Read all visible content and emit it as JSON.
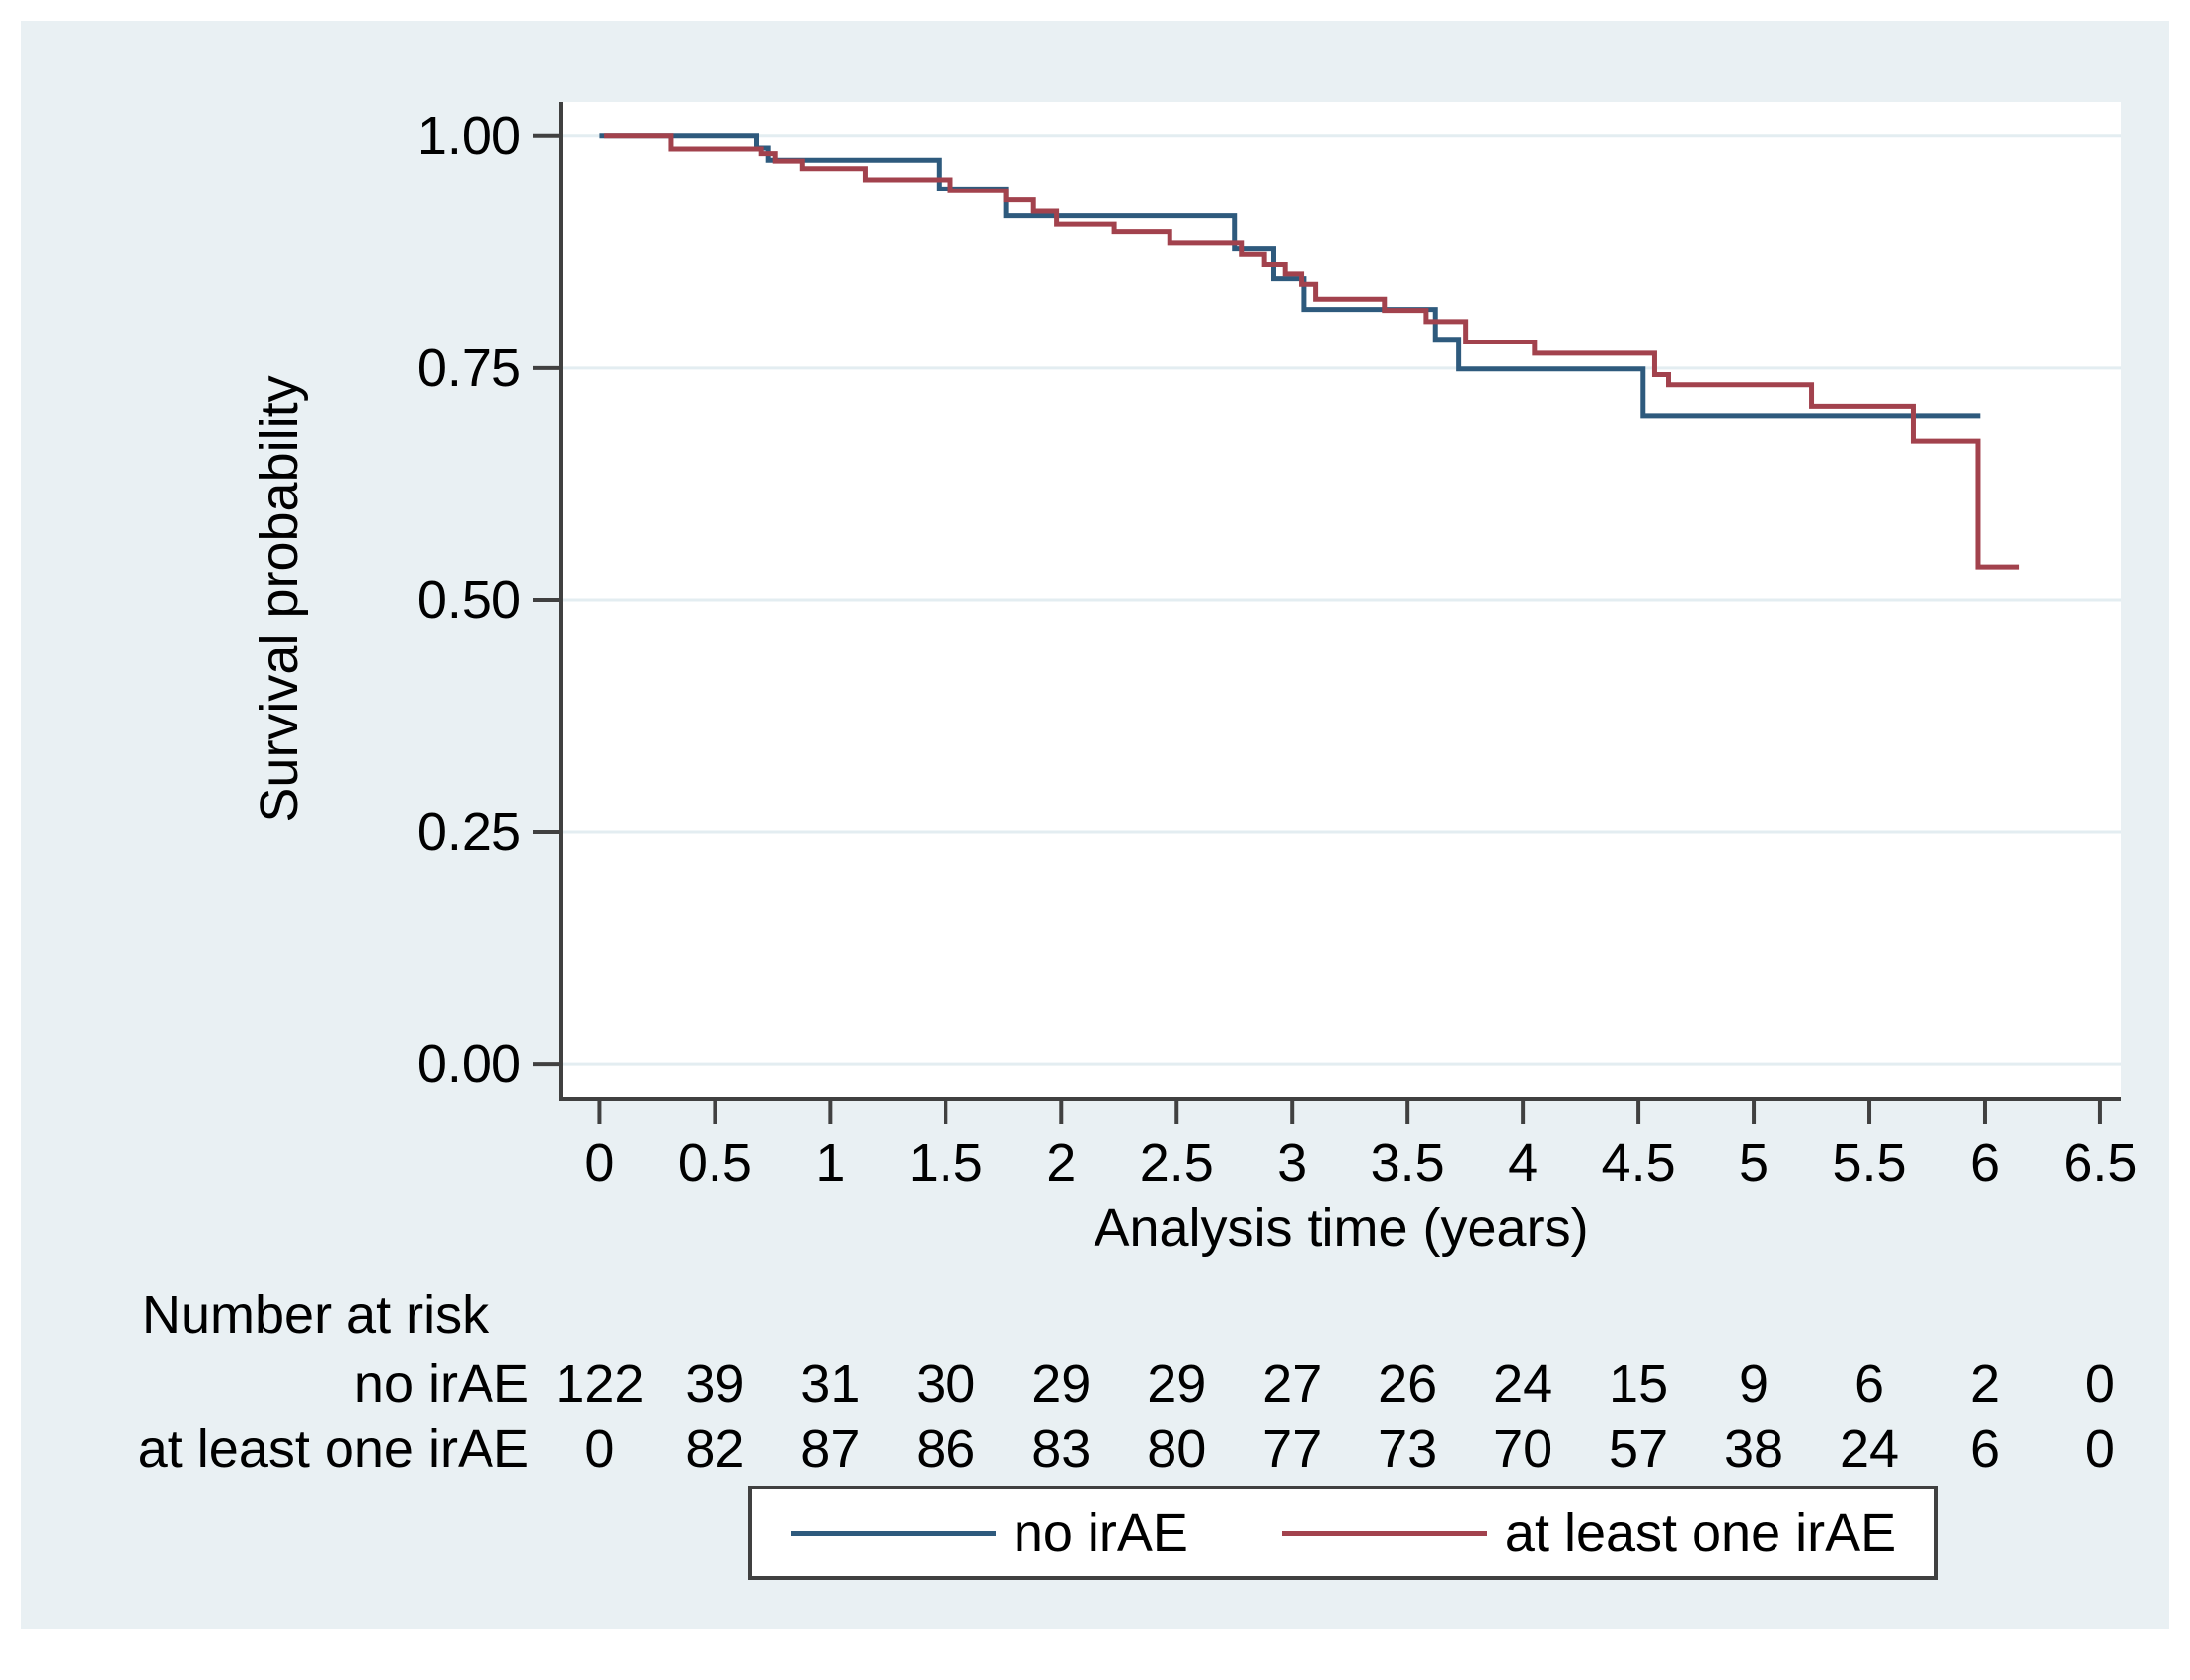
{
  "colors": {
    "figure_bg": "#e9f0f3",
    "plot_bg": "#ffffff",
    "grid": "#e3edf1",
    "axis": "#404040",
    "text": "#000000",
    "no_irae_line": "#2e5a7d",
    "at_least_one_irae_line": "#a2424d"
  },
  "legend": {
    "items": [
      {
        "label": "no irAE",
        "color": "#2e5a7d"
      },
      {
        "label": "at least one irAE",
        "color": "#a2424d"
      }
    ]
  },
  "chart_data": {
    "type": "line",
    "subtype": "kaplan-meier-step",
    "title": "",
    "xlabel": "Analysis time (years)",
    "ylabel": "Survival probability",
    "xlim": [
      -0.16,
      6.59
    ],
    "ylim": [
      -0.035,
      1.037
    ],
    "grid": true,
    "legend_position": "bottom",
    "x_ticks": [
      0,
      0.5,
      1,
      1.5,
      2,
      2.5,
      3,
      3.5,
      4,
      4.5,
      5,
      5.5,
      6,
      6.5
    ],
    "x_tick_labels": [
      "0",
      "0.5",
      "1",
      "1.5",
      "2",
      "2.5",
      "3",
      "3.5",
      "4",
      "4.5",
      "5",
      "5.5",
      "6",
      "6.5"
    ],
    "y_ticks": [
      0,
      0.25,
      0.5,
      0.75,
      1
    ],
    "y_tick_labels": [
      "0.00",
      "0.25",
      "0.50",
      "0.75",
      "1.00"
    ],
    "series": [
      {
        "name": "no irAE",
        "color": "#2e5a7d",
        "points": [
          [
            0,
            1.0
          ],
          [
            0.68,
            0.987
          ],
          [
            0.73,
            0.974
          ],
          [
            1.47,
            0.943
          ],
          [
            1.76,
            0.914
          ],
          [
            2.75,
            0.879
          ],
          [
            2.92,
            0.846
          ],
          [
            3.05,
            0.813
          ],
          [
            3.62,
            0.781
          ],
          [
            3.72,
            0.749
          ],
          [
            4.52,
            0.699
          ],
          [
            5.98,
            0.699
          ]
        ]
      },
      {
        "name": "at least one irAE",
        "color": "#a2424d",
        "points": [
          [
            0.02,
            1.0
          ],
          [
            0.31,
            0.986
          ],
          [
            0.7,
            0.981
          ],
          [
            0.76,
            0.973
          ],
          [
            0.88,
            0.965
          ],
          [
            1.15,
            0.953
          ],
          [
            1.52,
            0.941
          ],
          [
            1.76,
            0.931
          ],
          [
            1.88,
            0.919
          ],
          [
            1.98,
            0.905
          ],
          [
            2.23,
            0.897
          ],
          [
            2.47,
            0.885
          ],
          [
            2.78,
            0.873
          ],
          [
            2.88,
            0.862
          ],
          [
            2.97,
            0.851
          ],
          [
            3.04,
            0.84
          ],
          [
            3.1,
            0.824
          ],
          [
            3.4,
            0.812
          ],
          [
            3.58,
            0.8
          ],
          [
            3.75,
            0.778
          ],
          [
            4.05,
            0.766
          ],
          [
            4.57,
            0.743
          ],
          [
            4.63,
            0.732
          ],
          [
            5.25,
            0.709
          ],
          [
            5.69,
            0.671
          ],
          [
            5.97,
            0.536
          ],
          [
            6.15,
            0.536
          ]
        ]
      }
    ],
    "number_at_risk": {
      "title": "Number at risk",
      "rows": [
        {
          "label": "no irAE",
          "values": [
            "122",
            "39",
            "31",
            "30",
            "29",
            "29",
            "27",
            "26",
            "24",
            "15",
            "9",
            "6",
            "2",
            "0"
          ]
        },
        {
          "label": "at least one irAE",
          "values": [
            "0",
            "82",
            "87",
            "86",
            "83",
            "80",
            "77",
            "73",
            "70",
            "57",
            "38",
            "24",
            "6",
            "0"
          ]
        }
      ]
    }
  }
}
